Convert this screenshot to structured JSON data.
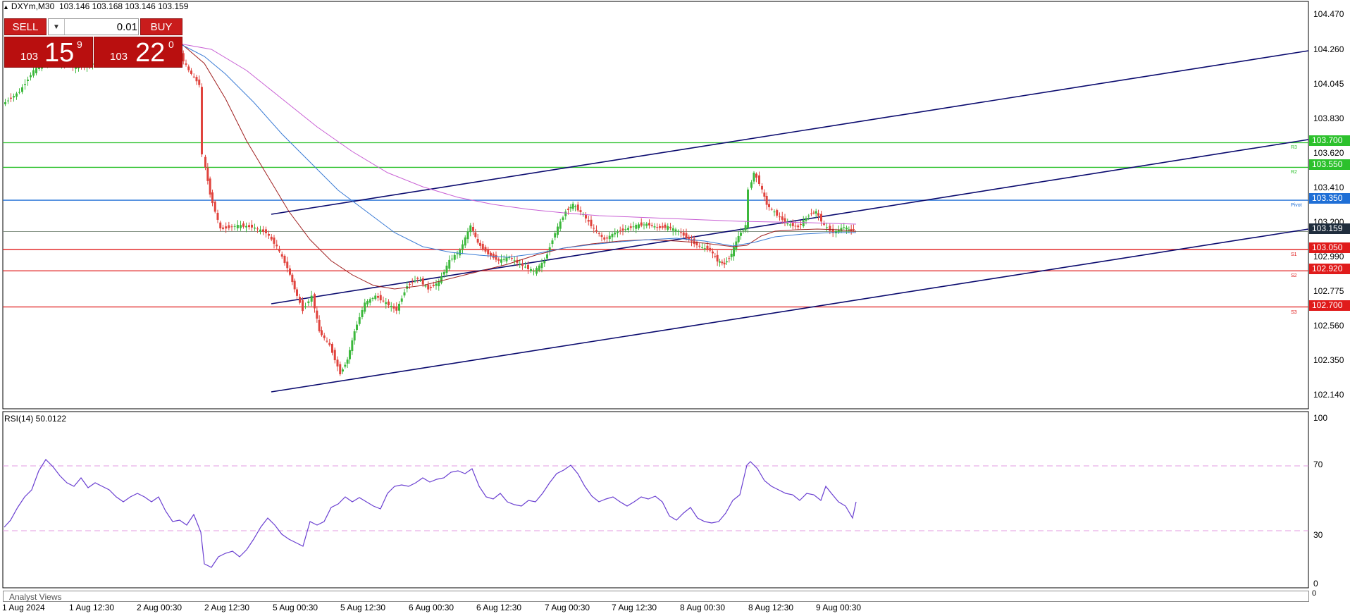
{
  "header": {
    "symbol_timeframe": "DXYm,M30",
    "ohlc": "103.146 103.168 103.146 103.159"
  },
  "trade_panel": {
    "sell_label": "SELL",
    "buy_label": "BUY",
    "lot_value": "0.01",
    "sell_quote": {
      "small": "103",
      "big": "15",
      "sup": "9"
    },
    "buy_quote": {
      "small": "103",
      "big": "22",
      "sup": "0"
    }
  },
  "price_axis": {
    "ticks": [
      "104.470",
      "104.260",
      "104.045",
      "103.830",
      "103.620",
      "103.410",
      "103.200",
      "102.990",
      "102.775",
      "102.560",
      "102.350",
      "102.140"
    ],
    "current_price": "103.159",
    "current_price_color": "#1f2d3d"
  },
  "levels": [
    {
      "price": "103.700",
      "name": "R3",
      "color": "#2cc12c"
    },
    {
      "price": "103.550",
      "name": "R2",
      "color": "#2cc12c"
    },
    {
      "price": "103.350",
      "name": "Pivot",
      "color": "#1f6fd6"
    },
    {
      "price": "103.050",
      "name": "S1",
      "color": "#e01b1b"
    },
    {
      "price": "102.920",
      "name": "S2",
      "color": "#e01b1b"
    },
    {
      "price": "102.700",
      "name": "S3",
      "color": "#e01b1b"
    }
  ],
  "rsi": {
    "label": "RSI(14) 50.0122",
    "ticks": [
      "100",
      "70",
      "30",
      "0"
    ],
    "line_color": "#6a3fd1",
    "level_color": "#e39be0"
  },
  "time_axis": [
    "1 Aug 2024",
    "1 Aug 12:30",
    "2 Aug 00:30",
    "2 Aug 12:30",
    "5 Aug 00:30",
    "5 Aug 12:30",
    "6 Aug 00:30",
    "6 Aug 12:30",
    "7 Aug 00:30",
    "7 Aug 12:30",
    "8 Aug 00:30",
    "8 Aug 12:30",
    "9 Aug 00:30"
  ],
  "footer": {
    "analyst_views": "Analyst Views",
    "corner": "0"
  },
  "colors": {
    "bull": "#3cb83c",
    "bear": "#e0443e",
    "channel": "#0a0a6e",
    "ma_fast": "#a02020",
    "ma_mid": "#3a7bd5",
    "ma_slow": "#c85fd4"
  }
}
